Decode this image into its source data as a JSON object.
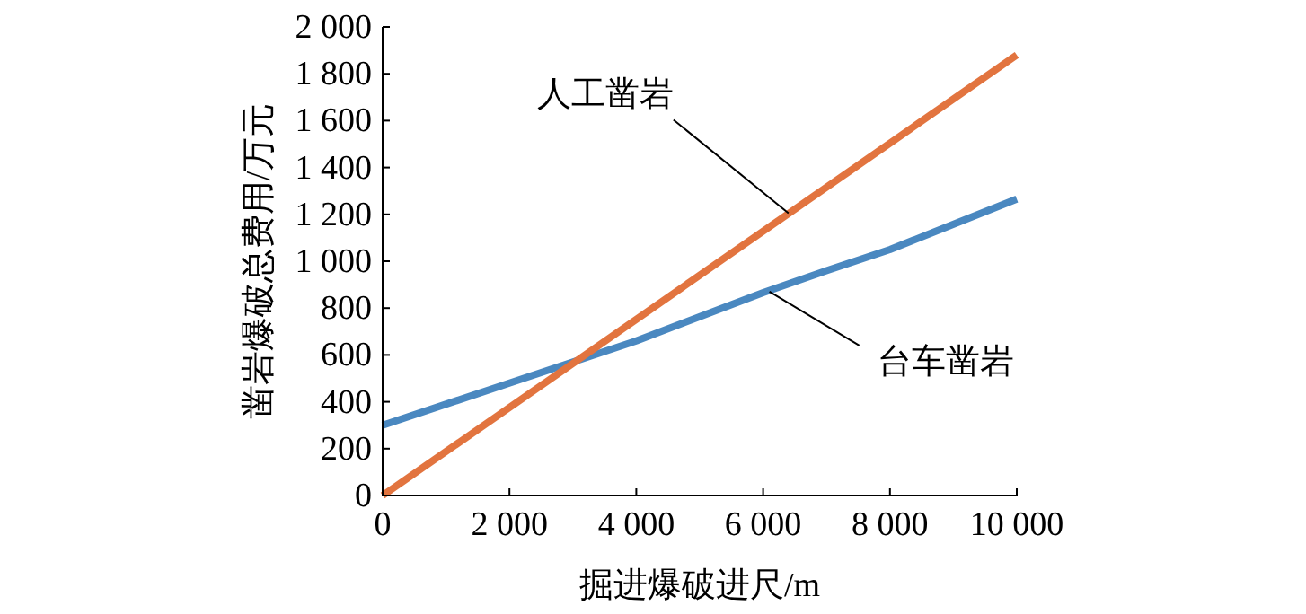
{
  "chart_data": {
    "type": "line",
    "xlabel": "掘进爆破进尺/m",
    "ylabel": "凿岩爆破总费用/万元",
    "xlim": [
      0,
      10000
    ],
    "ylim": [
      0,
      2000
    ],
    "xticks": [
      0,
      {
        "value": 2000,
        "label": "2 000"
      },
      {
        "value": 4000,
        "label": "4 000"
      },
      {
        "value": 6000,
        "label": "6 000"
      },
      {
        "value": 8000,
        "label": "8 000"
      },
      {
        "value": 10000,
        "label": "10 000"
      }
    ],
    "yticks": [
      0,
      200,
      400,
      600,
      800,
      {
        "value": 1000,
        "label": "1 000"
      },
      {
        "value": 1200,
        "label": "1 200"
      },
      {
        "value": 1400,
        "label": "1 400"
      },
      {
        "value": 1600,
        "label": "1 600"
      },
      {
        "value": 1800,
        "label": "1 800"
      },
      {
        "value": 2000,
        "label": "2 000"
      }
    ],
    "grid": false,
    "marker": "none",
    "line_style": "solid",
    "series": [
      {
        "color": "#4a88c0",
        "x": [
          0,
          2000,
          4000,
          6000,
          7000,
          8000,
          10000
        ],
        "values": [
          300,
          480,
          660,
          866,
          960,
          1050,
          1265
        ]
      },
      {
        "color": "#e2743f",
        "x": [
          0,
          10000
        ],
        "values": [
          0,
          1880
        ]
      }
    ],
    "annotations": [
      {
        "text": "人工凿岩",
        "x": 6400,
        "y": 1205
      },
      {
        "text": "台车凿岩",
        "x": 6100,
        "y": 870
      }
    ]
  }
}
